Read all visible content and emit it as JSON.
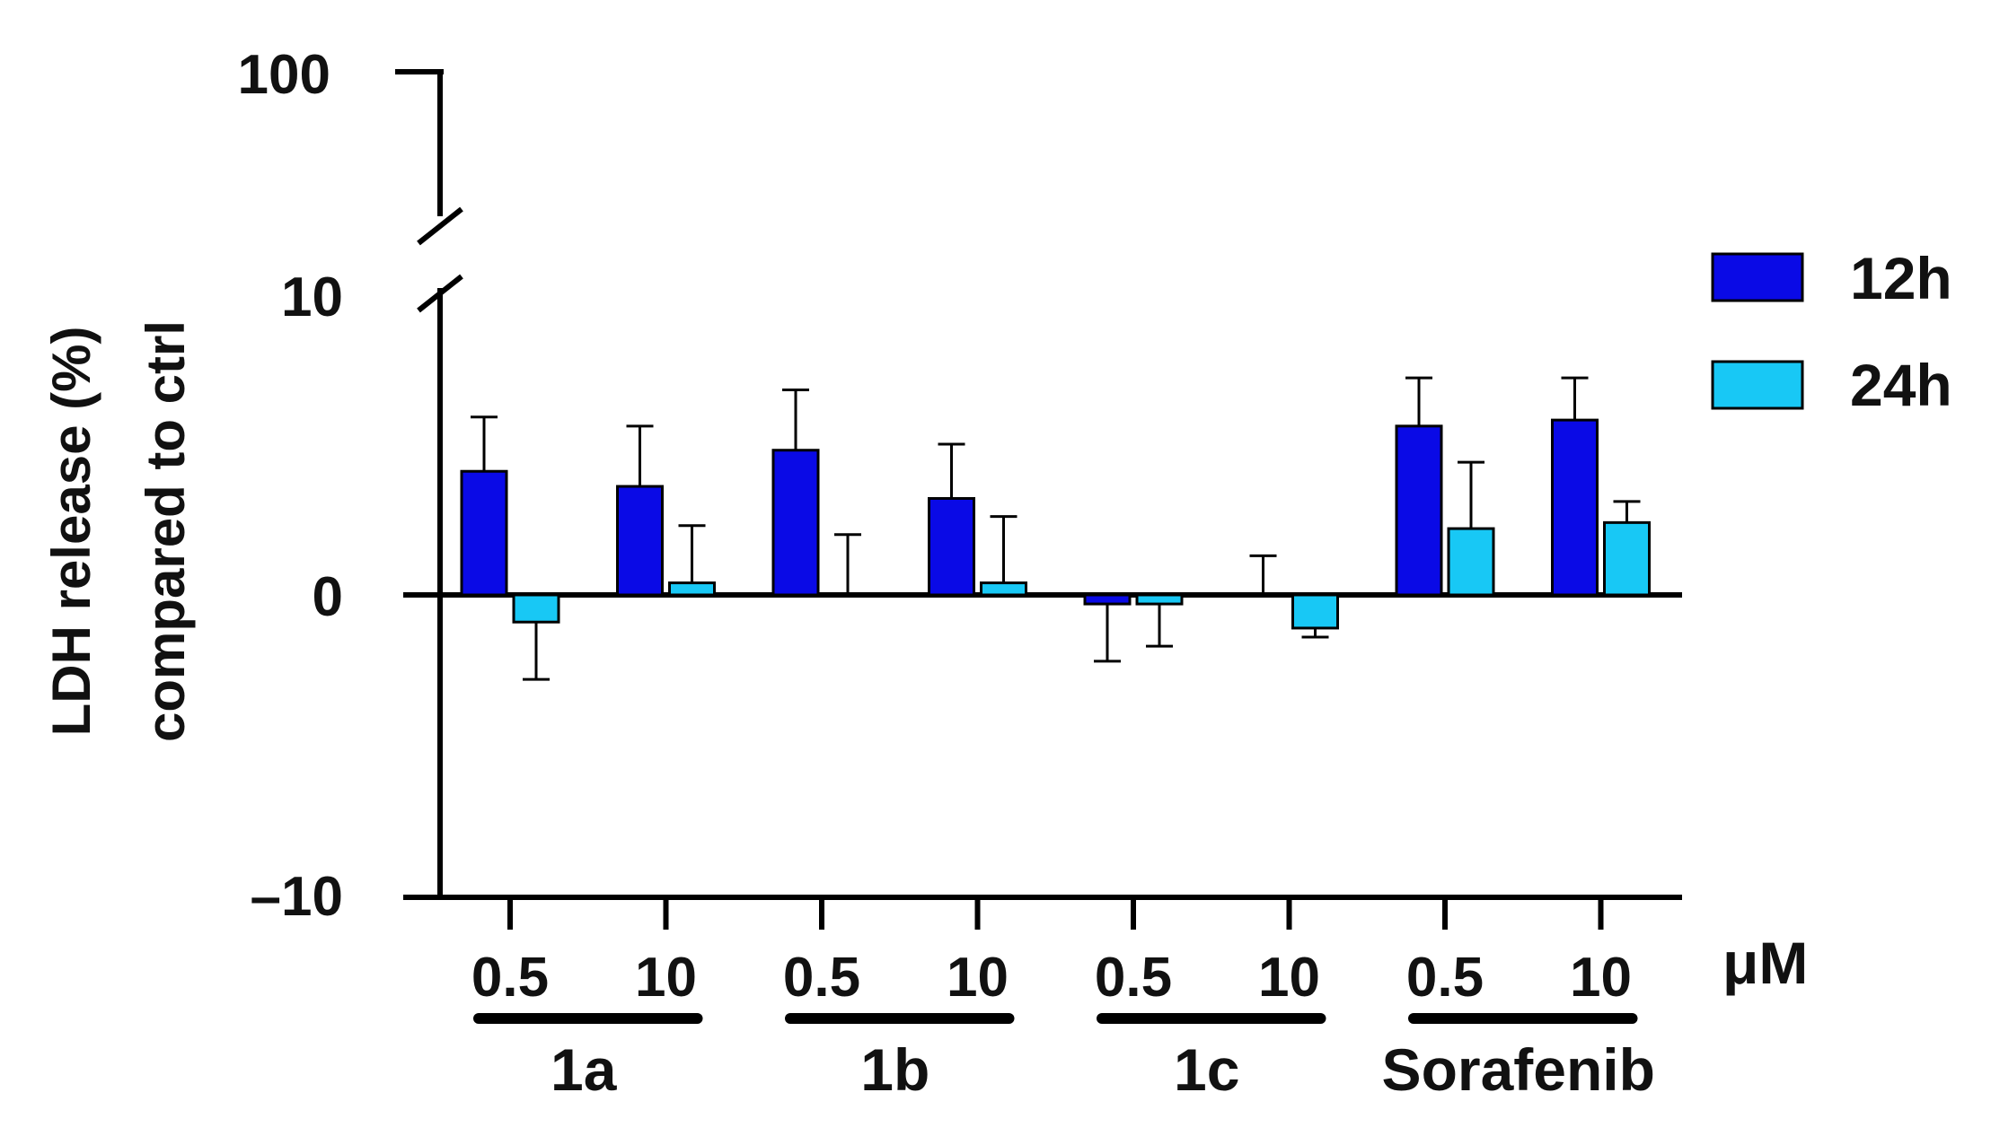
{
  "chart_data": {
    "type": "bar",
    "title": "",
    "ylabel_line1": "LDH release (%)",
    "ylabel_line2": "compared to ctrl",
    "unit_label": "μM",
    "y_axis": {
      "broken": true,
      "lower_range": [
        -10,
        10
      ],
      "upper_tick": 100,
      "ticks": [
        {
          "value": -10,
          "label": "–10"
        },
        {
          "value": 0,
          "label": "0"
        },
        {
          "value": 10,
          "label": "10"
        }
      ],
      "upper_tick_label": "100"
    },
    "categories": [
      "0.5",
      "10",
      "0.5",
      "10",
      "0.5",
      "10",
      "0.5",
      "10"
    ],
    "groups": [
      {
        "label": "1a",
        "categories": [
          0,
          1
        ]
      },
      {
        "label": "1b",
        "categories": [
          2,
          3
        ]
      },
      {
        "label": "1c",
        "categories": [
          4,
          5
        ]
      },
      {
        "label": "Sorafenib",
        "categories": [
          6,
          7
        ]
      }
    ],
    "series": [
      {
        "name": "12h",
        "color": "#0a0ae6",
        "values": [
          4.1,
          3.6,
          4.8,
          3.2,
          -0.3,
          0.0,
          5.6,
          5.8
        ],
        "errors": [
          1.8,
          2.0,
          2.0,
          1.8,
          1.9,
          1.3,
          1.6,
          1.4
        ]
      },
      {
        "name": "24h",
        "color": "#18c8f5",
        "values": [
          -0.9,
          0.4,
          0.0,
          0.4,
          -0.3,
          -1.1,
          2.2,
          2.4
        ],
        "errors": [
          1.9,
          1.9,
          2.0,
          2.2,
          1.4,
          0.3,
          2.2,
          0.7
        ]
      }
    ],
    "legend": {
      "position": "top-right",
      "entries": [
        "12h",
        "24h"
      ]
    }
  }
}
